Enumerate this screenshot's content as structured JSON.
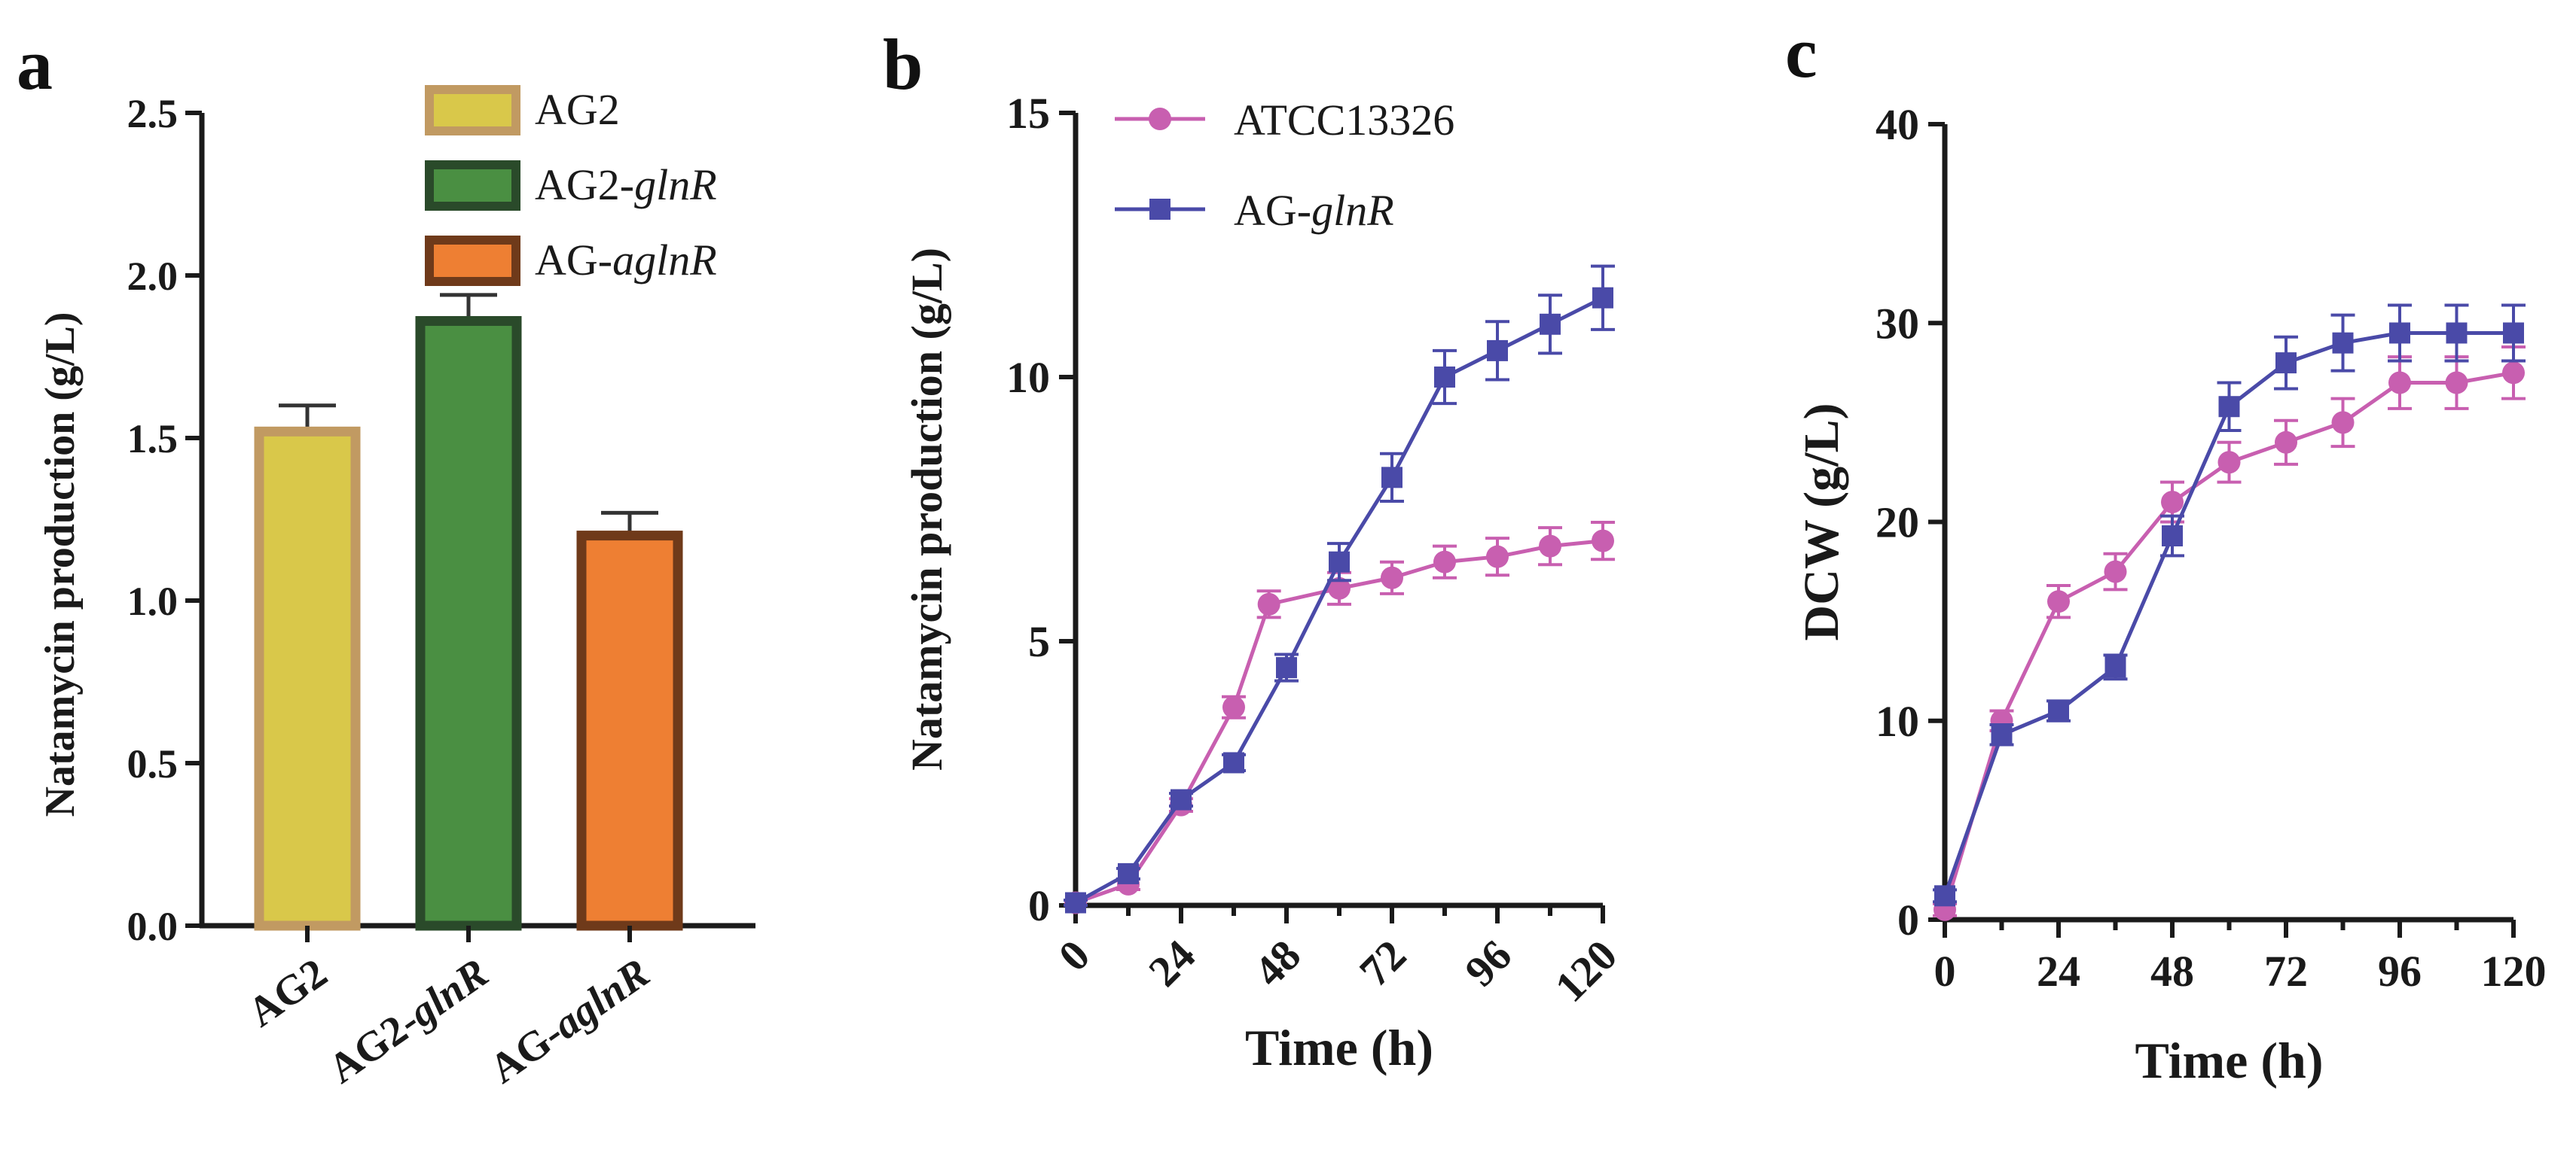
{
  "chart_data": [
    {
      "panel": "a",
      "type": "bar",
      "title": "",
      "ylabel": "Natamycin production (g/L)",
      "xlabel": "",
      "ylim": [
        0,
        2.5
      ],
      "yticks": [
        "0.0",
        "0.5",
        "1.0",
        "1.5",
        "2.0",
        "2.5"
      ],
      "categories": [
        {
          "pre": "AG2",
          "it": "",
          "full": "AG2"
        },
        {
          "pre": "AG2-",
          "it": "glnR",
          "full": "AG2-glnR"
        },
        {
          "pre": "AG-",
          "it": "aglnR",
          "full": "AG-aglnR"
        }
      ],
      "values": [
        1.52,
        1.86,
        1.2
      ],
      "errors": [
        0.08,
        0.08,
        0.07
      ],
      "fill_colors": [
        "#d9c84a",
        "#4a8f42",
        "#ee7f33"
      ],
      "edge_colors": [
        "#c19a62",
        "#2a4a2a",
        "#6f3a1a"
      ],
      "legend": [
        {
          "pre": "AG2",
          "it": ""
        },
        {
          "pre": "AG2-",
          "it": "glnR"
        },
        {
          "pre": "AG-",
          "it": "aglnR"
        }
      ]
    },
    {
      "panel": "b",
      "type": "line",
      "ylabel": "Natamycin production (g/L)",
      "xlabel": "Time (h)",
      "ylim": [
        0,
        15
      ],
      "yticks": [
        "0",
        "5",
        "10",
        "15"
      ],
      "xlim": [
        0,
        120
      ],
      "xticks": [
        "0",
        "24",
        "48",
        "72",
        "96",
        "120"
      ],
      "series": [
        {
          "name_pre": "ATCC13326",
          "name_it": "",
          "color": "#c85fb0",
          "marker": "circle",
          "x": [
            0,
            12,
            24,
            36,
            44,
            60,
            72,
            84,
            96,
            108,
            120
          ],
          "y": [
            0.05,
            0.4,
            1.9,
            3.75,
            5.7,
            6.0,
            6.2,
            6.5,
            6.6,
            6.8,
            6.9
          ],
          "err": [
            0.05,
            0.1,
            0.12,
            0.2,
            0.25,
            0.3,
            0.3,
            0.3,
            0.35,
            0.35,
            0.35
          ]
        },
        {
          "name_pre": "AG-",
          "name_it": "glnR",
          "color": "#4a4aa8",
          "marker": "square",
          "x": [
            0,
            12,
            24,
            36,
            48,
            60,
            72,
            84,
            96,
            108,
            120
          ],
          "y": [
            0.05,
            0.6,
            2.0,
            2.7,
            4.5,
            6.5,
            8.1,
            10.0,
            10.5,
            11.0,
            11.5
          ],
          "err": [
            0.05,
            0.1,
            0.12,
            0.15,
            0.25,
            0.35,
            0.45,
            0.5,
            0.55,
            0.55,
            0.6
          ]
        }
      ]
    },
    {
      "panel": "c",
      "type": "line",
      "ylabel": "DCW (g/L)",
      "xlabel": "Time (h)",
      "ylim": [
        0,
        40
      ],
      "yticks": [
        "0",
        "10",
        "20",
        "30",
        "40"
      ],
      "xlim": [
        0,
        120
      ],
      "xticks": [
        "0",
        "24",
        "48",
        "72",
        "96",
        "120"
      ],
      "series": [
        {
          "name_pre": "ATCC13326",
          "name_it": "",
          "color": "#c85fb0",
          "marker": "circle",
          "x": [
            0,
            12,
            24,
            36,
            48,
            60,
            72,
            84,
            96,
            108,
            120
          ],
          "y": [
            0.5,
            10.0,
            16.0,
            17.5,
            21.0,
            23.0,
            24.0,
            25.0,
            27.0,
            27.0,
            27.5
          ],
          "err": [
            0.3,
            0.5,
            0.8,
            0.9,
            1.0,
            1.0,
            1.1,
            1.2,
            1.3,
            1.3,
            1.3
          ]
        },
        {
          "name_pre": "AG-",
          "name_it": "glnR",
          "color": "#4a4aa8",
          "marker": "square",
          "x": [
            0,
            12,
            24,
            36,
            48,
            60,
            72,
            84,
            96,
            108,
            120
          ],
          "y": [
            1.2,
            9.3,
            10.5,
            12.7,
            19.3,
            25.8,
            28.0,
            29.0,
            29.5,
            29.5,
            29.5
          ],
          "err": [
            0.3,
            0.5,
            0.5,
            0.6,
            1.0,
            1.2,
            1.3,
            1.4,
            1.4,
            1.4,
            1.4
          ]
        }
      ]
    }
  ]
}
